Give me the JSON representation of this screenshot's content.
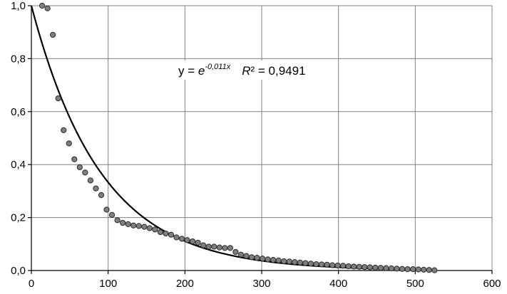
{
  "chart_data": {
    "type": "scatter",
    "title": "",
    "xlabel": "",
    "ylabel": "",
    "xlim": [
      0,
      600
    ],
    "ylim": [
      0,
      1.0
    ],
    "xticks": [
      0,
      100,
      200,
      300,
      400,
      500,
      600
    ],
    "xtick_labels": [
      "0",
      "100",
      "200",
      "300",
      "400",
      "500",
      "600"
    ],
    "yticks": [
      0,
      0.2,
      0.4,
      0.6,
      0.8,
      1.0
    ],
    "ytick_labels": [
      "0,0",
      "0,2",
      "0,4",
      "0,6",
      "0,8",
      "1,0"
    ],
    "grid": true,
    "colors": {
      "points_fill": "#7f7f7f",
      "points_stroke": "#2b2b2b",
      "fit_line": "#000000",
      "grid": "#808080"
    },
    "series": [
      {
        "type": "scatter",
        "x": [
          14,
          21,
          28,
          35,
          42,
          49,
          56,
          63,
          70,
          77,
          84,
          91,
          98,
          105,
          112,
          119,
          126,
          133,
          140,
          147,
          154,
          161,
          168,
          175,
          182,
          189,
          196,
          203,
          210,
          217,
          224,
          231,
          238,
          245,
          252,
          259,
          266,
          273,
          280,
          287,
          294,
          301,
          308,
          315,
          322,
          329,
          336,
          343,
          350,
          357,
          364,
          371,
          378,
          385,
          392,
          399,
          406,
          413,
          420,
          427,
          434,
          441,
          448,
          455,
          462,
          469,
          476,
          483,
          490,
          497,
          504,
          511,
          518,
          525
        ],
        "y": [
          1.0,
          0.99,
          0.89,
          0.65,
          0.53,
          0.48,
          0.42,
          0.39,
          0.37,
          0.34,
          0.31,
          0.285,
          0.23,
          0.21,
          0.19,
          0.18,
          0.175,
          0.17,
          0.168,
          0.165,
          0.16,
          0.155,
          0.145,
          0.14,
          0.135,
          0.125,
          0.12,
          0.115,
          0.11,
          0.105,
          0.095,
          0.09,
          0.09,
          0.087,
          0.085,
          0.085,
          0.07,
          0.06,
          0.055,
          0.05,
          0.048,
          0.045,
          0.042,
          0.04,
          0.038,
          0.035,
          0.034,
          0.032,
          0.03,
          0.028,
          0.026,
          0.024,
          0.023,
          0.022,
          0.02,
          0.019,
          0.018,
          0.016,
          0.015,
          0.014,
          0.013,
          0.012,
          0.011,
          0.01,
          0.009,
          0.008,
          0.007,
          0.006,
          0.005,
          0.005,
          0.004,
          0.003,
          0.002,
          0.001
        ]
      },
      {
        "type": "line",
        "function": "exp",
        "coefficient": -0.011,
        "x_range": [
          0,
          525
        ]
      }
    ],
    "annotation": {
      "y_prefix": "y = ",
      "base": "e",
      "exponent": "-0,011x",
      "r_label": "R",
      "r_tail": "² = 0,9491"
    }
  }
}
